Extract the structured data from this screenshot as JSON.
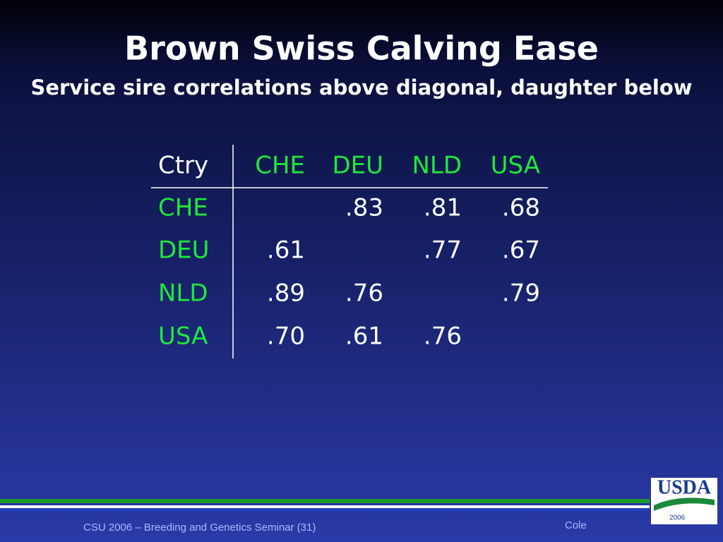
{
  "header": {
    "title": "Brown Swiss Calving Ease",
    "subtitle": "Service sire correlations above diagonal, daughter below"
  },
  "table": {
    "columns": [
      "Ctry",
      "CHE",
      "DEU",
      "NLD",
      "USA"
    ],
    "rows": [
      [
        "CHE",
        null,
        ".83",
        ".81",
        ".68"
      ],
      [
        "DEU",
        ".61",
        null,
        ".77",
        ".67"
      ],
      [
        "NLD",
        ".89",
        ".76",
        null,
        ".79"
      ],
      [
        "USA",
        ".70",
        ".61",
        ".76",
        null
      ]
    ]
  },
  "footer": {
    "left": "CSU 2006 – Breeding and Genetics Seminar (31)",
    "right": "Cole",
    "logo": "USDA",
    "logo_year": "2006"
  }
}
